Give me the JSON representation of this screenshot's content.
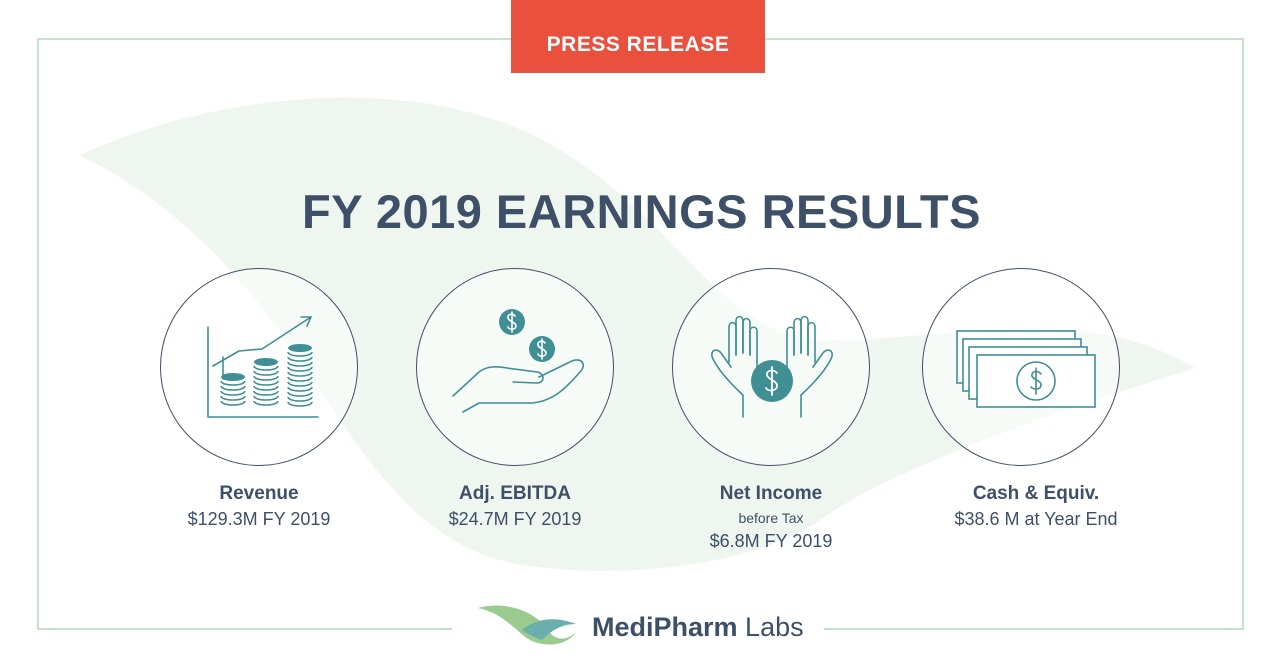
{
  "badge": {
    "label": "PRESS RELEASE"
  },
  "title": "FY 2019 EARNINGS RESULTS",
  "metrics": [
    {
      "name": "Revenue",
      "value": "$129.3M FY 2019",
      "icon": "stacked-coins-growth-chart-icon"
    },
    {
      "name": "Adj. EBITDA",
      "value": "$24.7M FY 2019",
      "icon": "hand-receiving-coins-icon"
    },
    {
      "name": "Net Income",
      "sub": "before Tax",
      "value": "$6.8M FY 2019",
      "icon": "hands-holding-coin-icon"
    },
    {
      "name": "Cash & Equiv.",
      "value": "$38.6 M at Year End",
      "icon": "stack-of-bills-icon"
    }
  ],
  "logo": {
    "name_bold": "MediPharm",
    "name_light": " Labs",
    "icon": "leaf-logo-icon"
  },
  "colors": {
    "badge": "#e9513e",
    "navy": "#3e4f68",
    "teal": "#3f8f94",
    "frame": "#c4e2cc",
    "leaf": "#eef6ef"
  }
}
